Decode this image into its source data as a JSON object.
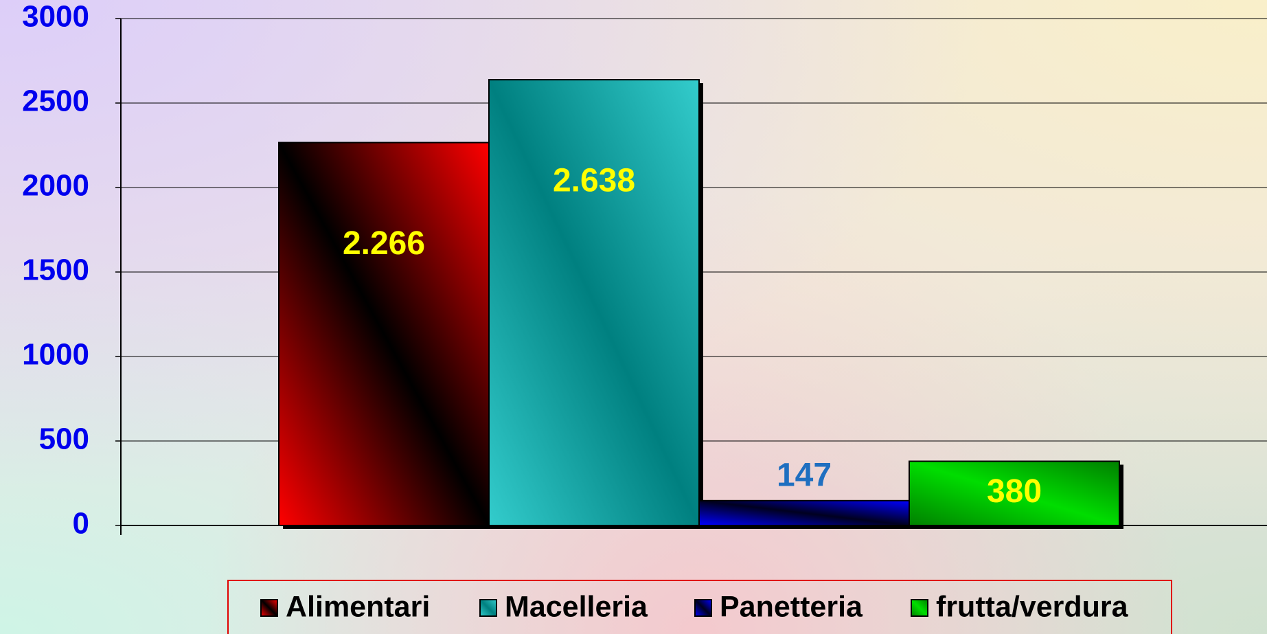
{
  "chart_data": {
    "type": "bar",
    "categories": [
      null
    ],
    "series": [
      {
        "name": "Alimentari",
        "color": "#ff0000",
        "values": [
          2266
        ],
        "value_labels": [
          "2.266"
        ],
        "label_color": "#ffff00"
      },
      {
        "name": "Macelleria",
        "color": "#33cccc",
        "values": [
          2638
        ],
        "value_labels": [
          "2.638"
        ],
        "label_color": "#ffff00"
      },
      {
        "name": "Panetteria",
        "color": "#0000ff",
        "values": [
          147
        ],
        "value_labels": [
          "147"
        ],
        "label_color": "#1f6fc0"
      },
      {
        "name": "frutta/verdura",
        "color": "#00dd00",
        "values": [
          380
        ],
        "value_labels": [
          "380"
        ],
        "label_color": "#ffff00"
      }
    ],
    "ylim": [
      0,
      3000
    ],
    "yticks": [
      0,
      500,
      1000,
      1500,
      2000,
      2500,
      3000
    ],
    "grid": true,
    "legend": "bottom"
  }
}
